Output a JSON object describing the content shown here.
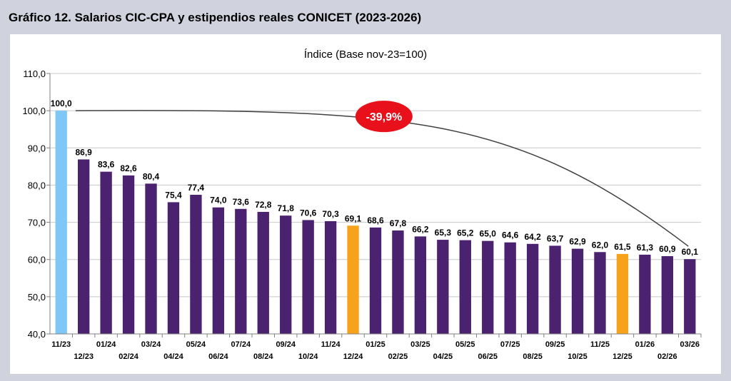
{
  "header": {
    "title": "Gráfico 12. Salarios CIC-CPA y estipendios reales CONICET (2023-2026)"
  },
  "chart_data": {
    "type": "bar",
    "title": "Índice (Base nov-23=100)",
    "categories": [
      "11/23",
      "12/23",
      "01/24",
      "02/24",
      "03/24",
      "04/24",
      "05/24",
      "06/24",
      "07/24",
      "08/24",
      "09/24",
      "10/24",
      "11/24",
      "12/24",
      "01/25",
      "02/25",
      "03/25",
      "04/25",
      "05/25",
      "06/25",
      "07/25",
      "08/25",
      "09/25",
      "10/25",
      "11/25",
      "12/25",
      "01/26",
      "02/26",
      "03/26"
    ],
    "series": [
      {
        "values": [
          100.0,
          86.9,
          83.6,
          82.6,
          80.4,
          75.4,
          77.4,
          74.0,
          73.6,
          72.8,
          71.8,
          70.6,
          70.3,
          69.1,
          68.6,
          67.8,
          66.2,
          65.3,
          65.2,
          65.0,
          64.6,
          64.2,
          63.7,
          62.9,
          62.0,
          61.5,
          61.3,
          60.9,
          60.1
        ],
        "data_labels": [
          "100,0",
          "86,9",
          "83,6",
          "82,6",
          "80,4",
          "75,4",
          "77,4",
          "74,0",
          "73,6",
          "72,8",
          "71,8",
          "70,6",
          "70,3",
          "69,1",
          "68,6",
          "67,8",
          "66,2",
          "65,3",
          "65,2",
          "65,0",
          "64,6",
          "64,2",
          "63,7",
          "62,9",
          "62,0",
          "61,5",
          "61,3",
          "60,9",
          "60,1"
        ]
      }
    ],
    "bar_colors": {
      "11/23": "#7fc7f7",
      "12/24": "#f7a21b",
      "12/25": "#f7a21b",
      "default": "#4b2270"
    },
    "ylim": [
      40,
      110
    ],
    "yticks": [
      40,
      50,
      60,
      70,
      80,
      90,
      100,
      110
    ],
    "ytick_labels": [
      "40,0",
      "50,0",
      "60,0",
      "70,0",
      "80,0",
      "90,0",
      "100,0",
      "110,0"
    ],
    "grid": true,
    "xlabel": "",
    "ylabel": "",
    "annotation": {
      "text": "-39,9%",
      "color": "#e8111b",
      "from_category": "11/23",
      "to_category": "03/26"
    }
  }
}
